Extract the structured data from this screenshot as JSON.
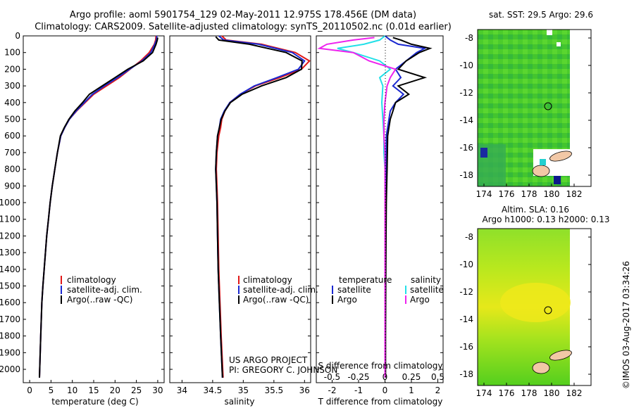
{
  "header": {
    "line1": "Argo profile: aoml 5901754_129 02-May-2011 12.975S 178.456E (DM data)",
    "line2": "Climatology: CARS2009. Satellite-adjusted climatology: synTS_20110502.nc (0.01d earlier)"
  },
  "colors": {
    "climatology": "#e01818",
    "satellite": "#1a28d0",
    "argo": "#000000",
    "salinity_sat": "#22e0e8",
    "salinity_argo": "#ee22ee"
  },
  "credits": {
    "project": "US ARGO PROJECT",
    "pi": "PI: GREGORY C. JOHNSON",
    "stamp": "©IMOS 03-Aug-2017 03:34:26"
  },
  "chart_data": [
    {
      "type": "line",
      "name": "temperature",
      "xlabel": "temperature (deg C)",
      "ylabel": "",
      "xlim": [
        -1.5,
        31.5
      ],
      "ylim": [
        2080,
        0
      ],
      "xticks": [
        0,
        5,
        10,
        15,
        20,
        25,
        30
      ],
      "xtick_labels": [
        "0",
        "5",
        "10",
        "15",
        "20",
        "25",
        "30"
      ],
      "yticks": [
        0,
        100,
        200,
        300,
        400,
        500,
        600,
        700,
        800,
        900,
        1000,
        1100,
        1200,
        1300,
        1400,
        1500,
        1600,
        1700,
        1800,
        1900,
        2000
      ],
      "ytick_labels": [
        "0",
        "100",
        "200",
        "300",
        "400",
        "500",
        "600",
        "700",
        "800",
        "900",
        "1000",
        "1100",
        "1200",
        "1300",
        "1400",
        "1500",
        "1600",
        "1700",
        "1800",
        "1900",
        "2000"
      ],
      "legend": [
        "climatology",
        "satellite-adj. clim.",
        "Argo(..raw -QC)"
      ],
      "series": [
        {
          "name": "climatology",
          "color": "#e01818",
          "x": [
            29.6,
            29.5,
            29.2,
            28,
            26,
            23.5,
            21,
            18,
            15,
            13,
            11,
            9.3,
            8.2,
            7.3,
            6.5,
            5.9,
            5.3,
            4.8,
            4.4,
            4.0,
            3.7,
            3.4,
            3.1,
            2.85,
            2.6,
            2.3
          ],
          "y": [
            0,
            25,
            50,
            100,
            150,
            200,
            250,
            300,
            350,
            400,
            450,
            500,
            550,
            600,
            700,
            800,
            900,
            1000,
            1100,
            1200,
            1300,
            1400,
            1500,
            1600,
            1800,
            2050
          ]
        },
        {
          "name": "satellite-adj. clim.",
          "color": "#1a28d0",
          "x": [
            29.8,
            29.7,
            29.3,
            28.4,
            26.3,
            23.4,
            20.6,
            17.5,
            14.7,
            12.8,
            10.9,
            9.3,
            8.2,
            7.3,
            6.5,
            5.9,
            5.3,
            4.8,
            4.4,
            4.0,
            3.7,
            3.4,
            3.1,
            2.85,
            2.6,
            2.3
          ],
          "y": [
            0,
            25,
            50,
            100,
            150,
            200,
            250,
            300,
            350,
            400,
            450,
            500,
            550,
            600,
            700,
            800,
            900,
            1000,
            1100,
            1200,
            1300,
            1400,
            1500,
            1600,
            1800,
            2050
          ]
        },
        {
          "name": "Argo(..raw -QC)",
          "color": "#000000",
          "x": [
            30,
            29.9,
            29.6,
            28.8,
            26.6,
            23,
            20,
            17,
            14,
            12.4,
            10.6,
            9.2,
            8.1,
            7.2,
            6.5,
            5.9,
            5.3,
            4.8,
            4.4,
            4.0,
            3.7,
            3.4,
            3.1,
            2.85,
            2.6,
            2.3
          ],
          "y": [
            10,
            25,
            50,
            100,
            150,
            200,
            250,
            300,
            350,
            400,
            450,
            500,
            550,
            600,
            700,
            800,
            900,
            1000,
            1100,
            1200,
            1300,
            1400,
            1500,
            1600,
            1800,
            2050
          ]
        }
      ]
    },
    {
      "type": "line",
      "name": "salinity",
      "xlabel": "salinity",
      "ylabel": "",
      "xlim": [
        33.8,
        36.1
      ],
      "ylim": [
        2080,
        0
      ],
      "xticks": [
        34,
        34.5,
        35,
        35.5,
        36
      ],
      "xtick_labels": [
        "34",
        "34.5",
        "35",
        "35.5",
        "36"
      ],
      "legend": [
        "climatology",
        "satellite-adj. clim.",
        "Argo(..raw -QC)"
      ],
      "series": [
        {
          "name": "climatology",
          "color": "#e01818",
          "x": [
            34.65,
            34.72,
            35.3,
            35.85,
            36.08,
            35.95,
            35.6,
            35.2,
            34.95,
            34.78,
            34.7,
            34.65,
            34.63,
            34.6,
            34.57,
            34.56,
            34.57,
            34.58,
            34.59,
            34.6,
            34.62,
            34.64,
            34.67
          ],
          "y": [
            0,
            25,
            50,
            100,
            150,
            200,
            250,
            300,
            350,
            400,
            450,
            500,
            550,
            600,
            700,
            800,
            900,
            1000,
            1200,
            1400,
            1600,
            1800,
            2050
          ]
        },
        {
          "name": "satellite-adj. clim.",
          "color": "#1a28d0",
          "x": [
            34.6,
            34.68,
            35.25,
            35.8,
            36.0,
            35.9,
            35.55,
            35.18,
            34.95,
            34.78,
            34.69,
            34.63,
            34.61,
            34.58,
            34.56,
            34.55,
            34.56,
            34.57,
            34.58,
            34.59,
            34.61,
            34.63,
            34.66
          ],
          "y": [
            0,
            25,
            50,
            100,
            150,
            200,
            250,
            300,
            350,
            400,
            450,
            500,
            550,
            600,
            700,
            800,
            900,
            1000,
            1200,
            1400,
            1600,
            1800,
            2050
          ]
        },
        {
          "name": "Argo(..raw -QC)",
          "color": "#000000",
          "x": [
            34.55,
            34.6,
            35.1,
            35.7,
            35.96,
            35.95,
            35.7,
            35.3,
            34.98,
            34.79,
            34.7,
            34.64,
            34.61,
            34.58,
            34.56,
            34.55,
            34.56,
            34.57,
            34.58,
            34.59,
            34.61,
            34.63,
            34.66
          ],
          "y": [
            5,
            25,
            50,
            100,
            150,
            200,
            250,
            300,
            350,
            400,
            450,
            500,
            550,
            600,
            700,
            800,
            900,
            1000,
            1200,
            1400,
            1600,
            1800,
            2050
          ]
        }
      ]
    },
    {
      "type": "line",
      "name": "difference",
      "title_top": "S difference from climatology",
      "xlabel": "T difference from climatology",
      "xlim_T": [
        -2.6,
        2.2
      ],
      "xlim_S": [
        -0.65,
        0.55
      ],
      "ylim": [
        2080,
        0
      ],
      "xticks_T": [
        -2,
        -1,
        0,
        1,
        2
      ],
      "xtick_labels_T": [
        "-2",
        "-1",
        "0",
        "1",
        "2"
      ],
      "xticks_S": [
        -0.5,
        -0.25,
        0,
        0.25,
        0.5
      ],
      "xtick_labels_S": [
        "-0.5",
        "-0.25",
        "0",
        "0.25",
        "0.5"
      ],
      "legend_titles": [
        "temperature",
        "salinity"
      ],
      "legend": [
        "satellite",
        "Argo",
        "satellite",
        "Argo"
      ],
      "series": [
        {
          "name": "temperature satellite",
          "axis": "T",
          "color": "#1a28d0",
          "x": [
            0,
            0.2,
            0.5,
            1.5,
            1.2,
            0.8,
            0.4,
            0.6,
            0.3,
            0.7,
            0.4,
            0.2,
            0.15,
            0.1,
            0.05,
            0.05,
            0.03,
            0.02,
            0.02,
            0.01,
            0.01
          ],
          "y": [
            0,
            25,
            50,
            75,
            100,
            150,
            200,
            250,
            300,
            350,
            400,
            450,
            500,
            550,
            600,
            800,
            1000,
            1200,
            1500,
            1800,
            2050
          ]
        },
        {
          "name": "temperature Argo",
          "axis": "T",
          "color": "#000000",
          "x": [
            0.3,
            0.6,
            1.0,
            1.7,
            1.3,
            0.8,
            0.5,
            1.5,
            0.5,
            0.9,
            0.4,
            0.3,
            0.2,
            0.15,
            0.1,
            0.08,
            0.05,
            0.04,
            0.03,
            0.02,
            0.02
          ],
          "y": [
            10,
            25,
            50,
            75,
            100,
            150,
            200,
            250,
            300,
            350,
            400,
            450,
            500,
            550,
            600,
            800,
            1000,
            1200,
            1500,
            1800,
            2050
          ]
        },
        {
          "name": "salinity satellite",
          "axis": "S",
          "color": "#22e0e8",
          "x": [
            0,
            -0.05,
            -0.2,
            -0.45,
            -0.3,
            -0.05,
            0.05,
            -0.05,
            -0.02,
            -0.03,
            -0.02,
            -0.01,
            -0.01,
            0,
            0,
            0,
            0,
            0,
            0
          ],
          "y": [
            0,
            25,
            50,
            75,
            100,
            150,
            200,
            250,
            300,
            400,
            500,
            600,
            700,
            800,
            1000,
            1200,
            1500,
            1800,
            2050
          ]
        },
        {
          "name": "salinity Argo",
          "axis": "S",
          "color": "#ee22ee",
          "x": [
            -0.1,
            -0.3,
            -0.55,
            -0.62,
            -0.3,
            -0.15,
            0.1,
            0.05,
            0.02,
            0.0,
            -0.01,
            -0.01,
            0,
            0,
            0,
            0,
            0,
            0,
            0
          ],
          "y": [
            10,
            25,
            50,
            75,
            100,
            150,
            200,
            250,
            300,
            400,
            500,
            600,
            700,
            800,
            1000,
            1200,
            1500,
            1800,
            2050
          ]
        }
      ]
    }
  ],
  "maps": [
    {
      "name": "sst-map",
      "title": "sat. SST: 29.5 Argo: 29.6",
      "xticks": [
        "174",
        "176",
        "178",
        "180",
        "182"
      ],
      "yticks": [
        "-8",
        "-10",
        "-12",
        "-14",
        "-16",
        "-18"
      ]
    },
    {
      "name": "sla-map",
      "title1": "Altim. SLA: 0.16",
      "title2": "Argo h1000: 0.13 h2000: 0.13",
      "xticks": [
        "174",
        "176",
        "178",
        "180",
        "182"
      ],
      "yticks": [
        "-8",
        "-10",
        "-12",
        "-14",
        "-16",
        "-18"
      ]
    }
  ]
}
